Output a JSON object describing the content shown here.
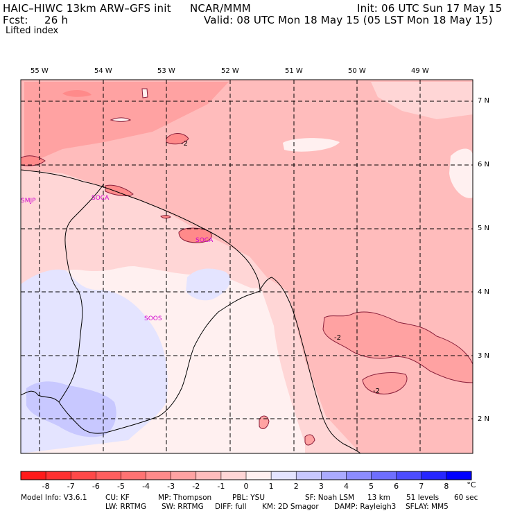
{
  "header": {
    "model": "HAIC–HIWC 13km ARW–GFS init",
    "org": "NCAR/MMM",
    "init": "Init: 06 UTC Sun 17 May 15",
    "fcst_label": "Fcst:",
    "fcst_value": "26 h",
    "valid": "Valid: 08 UTC Mon 18 May 15 (05 LST Mon 18 May 15)",
    "field": "Lifted index"
  },
  "map": {
    "lon_labels": [
      "55 W",
      "54 W",
      "53 W",
      "52 W",
      "51 W",
      "50 W",
      "49 W"
    ],
    "lat_labels": [
      "7 N",
      "6 N",
      "5 N",
      "4 N",
      "3 N",
      "2 N"
    ],
    "stations": [
      "SMJP",
      "SOCA",
      "SOCA",
      "SOOS"
    ],
    "contour_labels": [
      "-2",
      "-2",
      "-2"
    ]
  },
  "colorbar": {
    "values": [
      "-8",
      "-7",
      "-6",
      "-5",
      "-4",
      "-3",
      "-2",
      "-1",
      "0",
      "1",
      "2",
      "3",
      "4",
      "5",
      "6",
      "7",
      "8"
    ],
    "unit": "°C",
    "colors": [
      "#ff1a1a",
      "#ff3030",
      "#ff4848",
      "#ff5e5e",
      "#ff7272",
      "#ff8a8a",
      "#ffa2a2",
      "#ffbcbc",
      "#ffd6d6",
      "#fff0f0",
      "#e4e4ff",
      "#c8c8ff",
      "#aaaaff",
      "#8c8cff",
      "#6e6eff",
      "#4c4cff",
      "#2626ff",
      "#0000ff"
    ]
  },
  "footer": {
    "line1": [
      "Model Info: V3.6.1",
      "CU: KF",
      "MP: Thompson",
      "PBL: YSU",
      "SF: Noah LSM",
      "13 km",
      "51 levels",
      "60 sec"
    ],
    "line2": [
      "LW: RRTMG",
      "SW: RRTMG",
      "DIFF: full",
      "KM: 2D Smagor",
      "DAMP: Rayleigh3",
      "SFLAY: MM5"
    ]
  }
}
